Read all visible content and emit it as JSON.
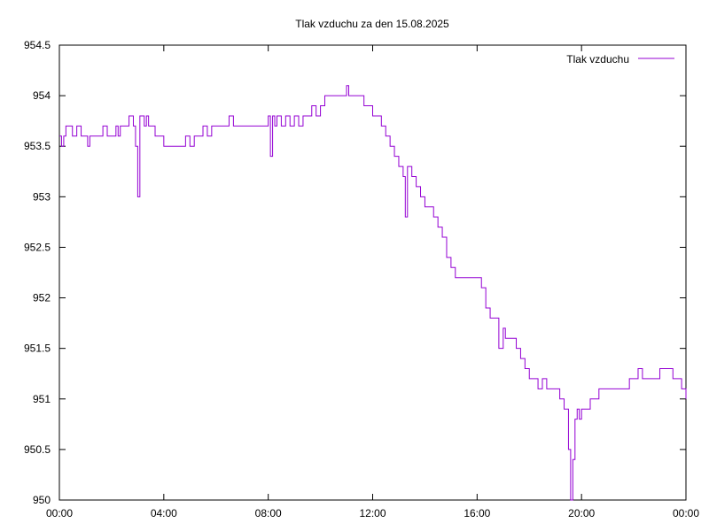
{
  "chart_data": {
    "type": "line",
    "title": "Tlak vzduchu za den 15.08.2025",
    "xlabel": "",
    "ylabel": "",
    "xlim": [
      "00:00",
      "24:00"
    ],
    "ylim": [
      950,
      954.5
    ],
    "x_tick_labels": [
      "00:00",
      "04:00",
      "08:00",
      "12:00",
      "16:00",
      "20:00",
      "00:00"
    ],
    "y_tick_labels": [
      "950",
      "950.5",
      "951",
      "951.5",
      "952",
      "952.5",
      "953",
      "953.5",
      "954",
      "954.5"
    ],
    "grid": false,
    "legend_position": "top-right",
    "series": [
      {
        "name": "Tlak vzduchu",
        "color": "#9400d3",
        "x": [
          "00:00",
          "00:05",
          "00:10",
          "00:15",
          "00:20",
          "00:30",
          "00:40",
          "00:50",
          "01:00",
          "01:05",
          "01:10",
          "01:20",
          "01:30",
          "01:40",
          "01:50",
          "02:00",
          "02:10",
          "02:15",
          "02:20",
          "02:30",
          "02:40",
          "02:50",
          "02:55",
          "03:00",
          "03:05",
          "03:10",
          "03:15",
          "03:20",
          "03:25",
          "03:30",
          "03:40",
          "03:50",
          "04:00",
          "04:10",
          "04:20",
          "04:30",
          "04:40",
          "04:50",
          "05:00",
          "05:10",
          "05:20",
          "05:30",
          "05:40",
          "05:50",
          "06:00",
          "06:10",
          "06:20",
          "06:30",
          "06:40",
          "06:50",
          "07:00",
          "07:10",
          "07:20",
          "07:30",
          "07:40",
          "07:50",
          "08:00",
          "08:05",
          "08:10",
          "08:15",
          "08:20",
          "08:30",
          "08:40",
          "08:50",
          "09:00",
          "09:10",
          "09:20",
          "09:30",
          "09:40",
          "09:50",
          "10:00",
          "10:10",
          "10:20",
          "10:30",
          "10:40",
          "10:50",
          "11:00",
          "11:05",
          "11:10",
          "11:20",
          "11:30",
          "11:40",
          "11:50",
          "12:00",
          "12:10",
          "12:20",
          "12:30",
          "12:40",
          "12:50",
          "13:00",
          "13:10",
          "13:15",
          "13:20",
          "13:25",
          "13:30",
          "13:40",
          "13:50",
          "14:00",
          "14:10",
          "14:20",
          "14:30",
          "14:40",
          "14:50",
          "15:00",
          "15:10",
          "15:20",
          "15:30",
          "15:40",
          "15:50",
          "16:00",
          "16:10",
          "16:20",
          "16:30",
          "16:40",
          "16:50",
          "17:00",
          "17:05",
          "17:10",
          "17:20",
          "17:30",
          "17:40",
          "17:50",
          "18:00",
          "18:10",
          "18:20",
          "18:30",
          "18:40",
          "18:50",
          "19:00",
          "19:10",
          "19:20",
          "19:30",
          "19:35",
          "19:40",
          "19:45",
          "19:50",
          "19:55",
          "20:00",
          "20:10",
          "20:20",
          "20:30",
          "20:40",
          "20:50",
          "21:00",
          "21:10",
          "21:20",
          "21:30",
          "21:40",
          "21:50",
          "22:00",
          "22:10",
          "22:20",
          "22:30",
          "22:40",
          "22:50",
          "23:00",
          "23:10",
          "23:20",
          "23:30",
          "23:40",
          "23:50",
          "24:00"
        ],
        "y": [
          953.6,
          953.5,
          953.6,
          953.7,
          953.7,
          953.6,
          953.7,
          953.6,
          953.6,
          953.5,
          953.6,
          953.6,
          953.6,
          953.7,
          953.6,
          953.6,
          953.7,
          953.6,
          953.7,
          953.7,
          953.8,
          953.7,
          953.5,
          953.0,
          953.8,
          953.8,
          953.7,
          953.8,
          953.7,
          953.7,
          953.6,
          953.6,
          953.5,
          953.5,
          953.5,
          953.5,
          953.5,
          953.6,
          953.5,
          953.6,
          953.6,
          953.7,
          953.6,
          953.7,
          953.7,
          953.7,
          953.7,
          953.8,
          953.7,
          953.7,
          953.7,
          953.7,
          953.7,
          953.7,
          953.7,
          953.7,
          953.8,
          953.4,
          953.8,
          953.7,
          953.8,
          953.7,
          953.8,
          953.7,
          953.8,
          953.7,
          953.8,
          953.8,
          953.9,
          953.8,
          953.9,
          954.0,
          954.0,
          954.0,
          954.0,
          954.0,
          954.1,
          954.0,
          954.0,
          954.0,
          954.0,
          953.9,
          953.9,
          953.8,
          953.8,
          953.7,
          953.6,
          953.5,
          953.4,
          953.3,
          953.2,
          952.8,
          953.3,
          953.3,
          953.2,
          953.1,
          953.0,
          952.9,
          952.9,
          952.8,
          952.7,
          952.6,
          952.4,
          952.3,
          952.2,
          952.2,
          952.2,
          952.2,
          952.2,
          952.2,
          952.1,
          951.9,
          951.8,
          951.8,
          951.5,
          951.7,
          951.6,
          951.6,
          951.6,
          951.5,
          951.4,
          951.3,
          951.2,
          951.2,
          951.1,
          951.2,
          951.1,
          951.1,
          951.1,
          951.0,
          950.9,
          950.5,
          950.0,
          950.4,
          950.8,
          950.9,
          950.8,
          950.9,
          950.9,
          951.0,
          951.0,
          951.1,
          951.1,
          951.1,
          951.1,
          951.1,
          951.1,
          951.1,
          951.2,
          951.2,
          951.3,
          951.2,
          951.2,
          951.2,
          951.2,
          951.3,
          951.3,
          951.3,
          951.2,
          951.2,
          951.1,
          951.0
        ]
      }
    ]
  }
}
